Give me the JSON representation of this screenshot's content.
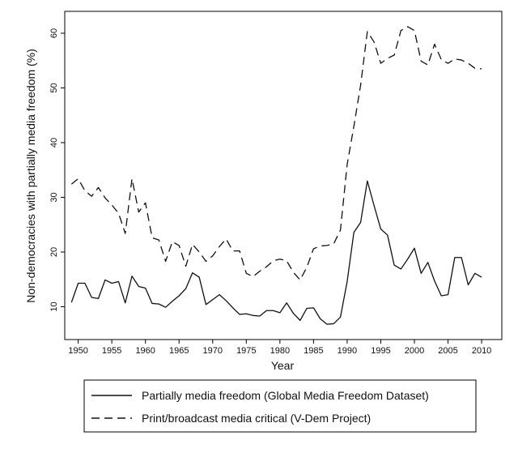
{
  "chart_data": {
    "type": "line",
    "xlabel": "Year",
    "ylabel": "Non-democracies with partially media freedom (%)",
    "xlim": [
      1948,
      2013
    ],
    "ylim": [
      4,
      64
    ],
    "xticks": [
      1950,
      1955,
      1960,
      1965,
      1970,
      1975,
      1980,
      1985,
      1990,
      1995,
      2000,
      2005,
      2010
    ],
    "xtick_labels": [
      "1950",
      "1955",
      "1960",
      "1965",
      "1970",
      "1975",
      "1980",
      "1985",
      "1990",
      "1995",
      "2000",
      "2005",
      "2010"
    ],
    "yticks": [
      10,
      20,
      30,
      40,
      50,
      60
    ],
    "ytick_labels": [
      "10",
      "20",
      "30",
      "40",
      "50",
      "60"
    ],
    "grid": false,
    "legend_position": "bottom",
    "x": [
      1949,
      1950,
      1951,
      1952,
      1953,
      1954,
      1955,
      1956,
      1957,
      1958,
      1959,
      1960,
      1961,
      1962,
      1963,
      1964,
      1965,
      1966,
      1967,
      1968,
      1969,
      1970,
      1971,
      1972,
      1973,
      1974,
      1975,
      1976,
      1977,
      1978,
      1979,
      1980,
      1981,
      1982,
      1983,
      1984,
      1985,
      1986,
      1987,
      1988,
      1989,
      1990,
      1991,
      1992,
      1993,
      1994,
      1995,
      1996,
      1997,
      1998,
      1999,
      2000,
      2001,
      2002,
      2003,
      2004,
      2005,
      2006,
      2007,
      2008,
      2009,
      2010
    ],
    "series": [
      {
        "name": "Partially media freedom (Global Media Freedom Dataset)",
        "style": "solid",
        "color": "#111111",
        "values": [
          10.8,
          14.3,
          14.3,
          11.7,
          11.5,
          14.9,
          14.3,
          14.6,
          10.7,
          15.6,
          13.7,
          13.4,
          10.6,
          10.5,
          9.9,
          11.0,
          12.0,
          13.3,
          16.2,
          15.4,
          10.4,
          11.3,
          12.2,
          11.1,
          9.8,
          8.6,
          8.7,
          8.4,
          8.3,
          9.3,
          9.3,
          8.9,
          10.7,
          8.8,
          7.5,
          9.7,
          9.8,
          7.8,
          6.8,
          6.9,
          8.1,
          14.6,
          23.6,
          25.4,
          33.0,
          28.5,
          24.2,
          23.1,
          17.6,
          16.9,
          18.7,
          20.7,
          16.1,
          18.1,
          14.7,
          12.0,
          12.2,
          19.0,
          19.0,
          14.0,
          16.1,
          15.4
        ]
      },
      {
        "name": "Print/broadcast media critical (V-Dem Project)",
        "style": "dashed",
        "color": "#111111",
        "values": [
          32.4,
          33.4,
          31.2,
          30.2,
          31.8,
          29.9,
          28.6,
          27.1,
          23.4,
          33.4,
          27.3,
          29.0,
          22.6,
          22.2,
          18.3,
          21.9,
          21.2,
          17.4,
          21.4,
          20.0,
          18.3,
          19.3,
          21.0,
          22.4,
          20.2,
          20.2,
          16.1,
          15.5,
          16.5,
          17.3,
          18.4,
          18.7,
          18.4,
          16.3,
          14.9,
          17.2,
          20.6,
          21.1,
          21.2,
          21.5,
          24.0,
          36.0,
          43.0,
          50.5,
          60.3,
          58.4,
          54.5,
          55.4,
          56.0,
          60.5,
          61.2,
          60.5,
          54.9,
          54.2,
          58.0,
          55.2,
          54.5,
          55.3,
          55.1,
          54.5,
          53.6,
          53.5
        ]
      }
    ]
  }
}
